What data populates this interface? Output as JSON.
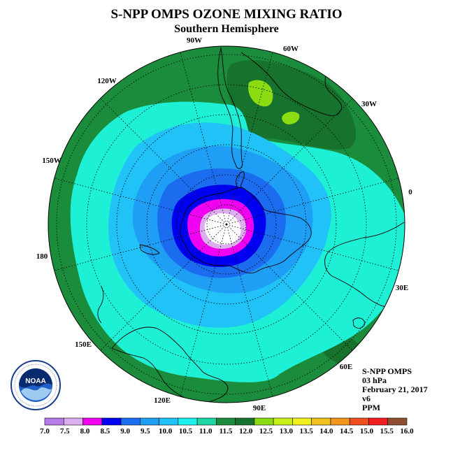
{
  "title": "S-NPP OMPS OZONE MIXING RATIO",
  "subtitle": "Southern Hemisphere",
  "longitude_labels": {
    "lon_90w": "90W",
    "lon_60w": "60W",
    "lon_120w": "120W",
    "lon_30w": "30W",
    "lon_150w": "150W",
    "lon_0": "0",
    "lon_180": "180",
    "lon_30e": "30E",
    "lon_150e": "150E",
    "lon_60e": "60E",
    "lon_120e": "120E",
    "lon_90e": "90E"
  },
  "info": {
    "instrument": "S-NPP OMPS",
    "level": "03 hPa",
    "date": "February 21, 2017",
    "version": "v6",
    "units": "PPM"
  },
  "colorbar": {
    "ticks": [
      "7.0",
      "7.5",
      "8.0",
      "8.5",
      "9.0",
      "9.5",
      "10.0",
      "10.5",
      "11.0",
      "11.5",
      "12.0",
      "12.5",
      "13.0",
      "13.5",
      "14.0",
      "14.5",
      "15.0",
      "15.5",
      "16.0"
    ],
    "colors": [
      "#b57be8",
      "#dcaef0",
      "#f000f0",
      "#0000f0",
      "#1c6cf0",
      "#1e9ef5",
      "#20c2f8",
      "#1ef0f0",
      "#1ed6a4",
      "#1a8c3c",
      "#16722c",
      "#8cdc14",
      "#c8f01a",
      "#f0f01e",
      "#f0c01e",
      "#f0961e",
      "#f0501e",
      "#f01e1e",
      "#8c5030"
    ]
  },
  "logo": {
    "text": "NOAA"
  },
  "map_levels": {
    "c_11_0": "#1a8c3c",
    "c_11_5": "#16722c",
    "c_12_0": "#8cdc14",
    "c_10_5": "#1ef0d6",
    "c_10_0": "#20c2f8",
    "c_9_5": "#1e9ef5",
    "c_9_0": "#1c6cf0",
    "c_8_5": "#0000f0",
    "c_8_0": "#f000f0",
    "c_7_5": "#dcaef0",
    "c_7_0": "#ffffff"
  }
}
